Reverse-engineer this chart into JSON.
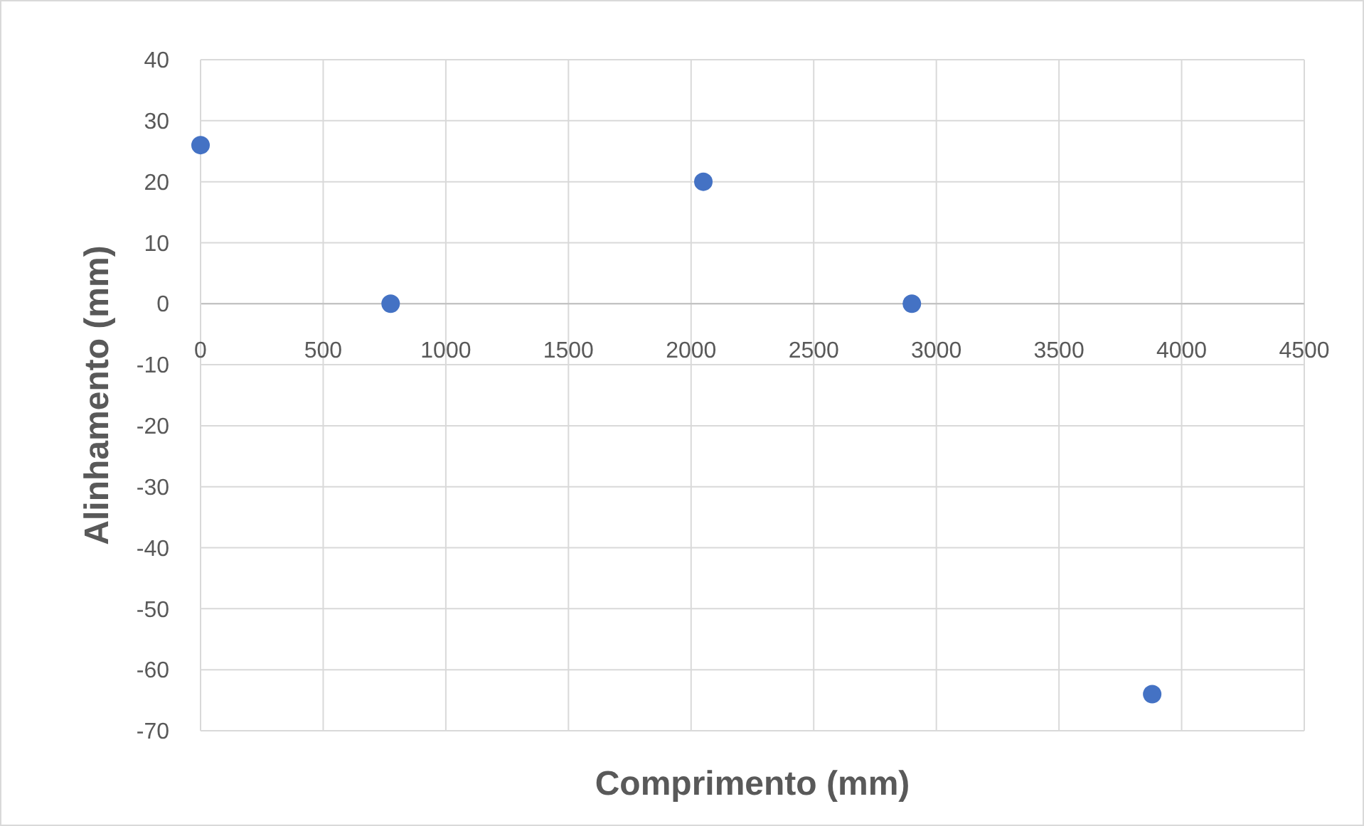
{
  "chart_data": {
    "type": "scatter",
    "xlabel": "Comprimento (mm)",
    "ylabel": "Alinhamento (mm)",
    "x": [
      0,
      775,
      2050,
      2900,
      3880
    ],
    "series": [
      {
        "color": "#4472c4",
        "values": [
          26,
          0,
          20,
          0,
          -64
        ]
      }
    ],
    "xlim": [
      0,
      4500
    ],
    "xticks": [
      0,
      500,
      1000,
      1500,
      2000,
      2500,
      3000,
      3500,
      4000,
      4500
    ],
    "ylim": [
      -70,
      40
    ],
    "yticks": [
      -70,
      -60,
      -50,
      -40,
      -30,
      -20,
      -10,
      0,
      10,
      20,
      30,
      40
    ],
    "grid": true,
    "marker": "circle"
  }
}
